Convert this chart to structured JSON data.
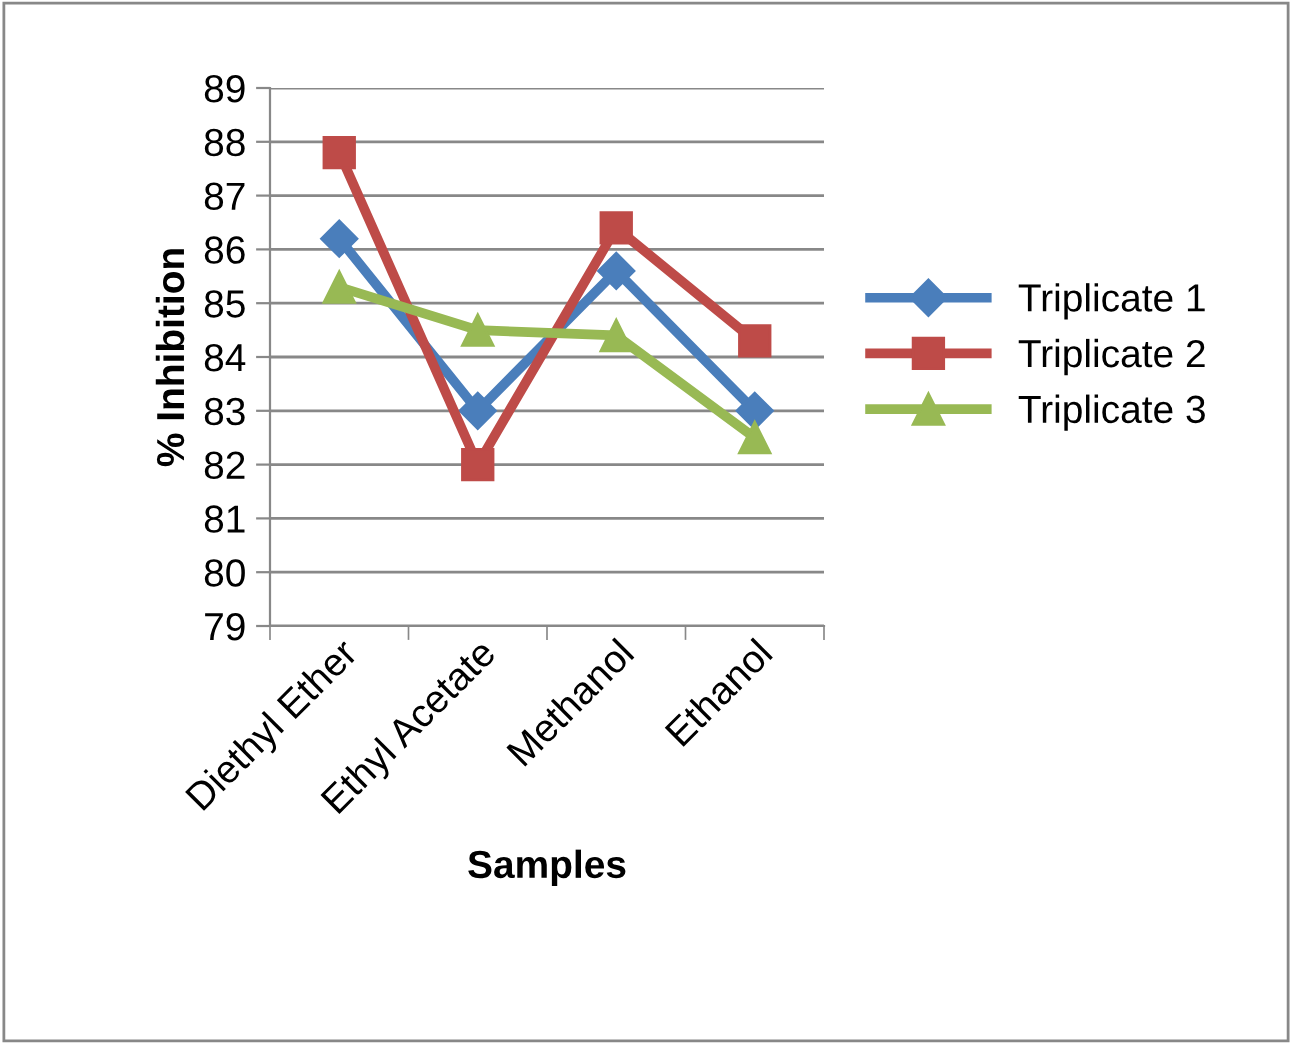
{
  "chart_data": {
    "type": "line",
    "xlabel": "Samples",
    "ylabel": "% Inhibition",
    "categories": [
      "Diethyl Ether",
      "Ethyl Acetate",
      "Methanol",
      "Ethanol"
    ],
    "series": [
      {
        "name": "Triplicate 1",
        "color": "#4a7ebb",
        "marker": "diamond",
        "values": [
          86.2,
          83.0,
          85.6,
          83.0
        ]
      },
      {
        "name": "Triplicate 2",
        "color": "#be4b48",
        "marker": "square",
        "values": [
          87.8,
          82.0,
          86.4,
          84.3
        ]
      },
      {
        "name": "Triplicate 3",
        "color": "#98b954",
        "marker": "triangle",
        "values": [
          85.3,
          84.5,
          84.4,
          82.5
        ]
      }
    ],
    "ylim": [
      79,
      89
    ],
    "yticks": [
      79,
      80,
      81,
      82,
      83,
      84,
      85,
      86,
      87,
      88,
      89
    ],
    "grid": "y",
    "legend": "right",
    "line_style": "solid"
  }
}
